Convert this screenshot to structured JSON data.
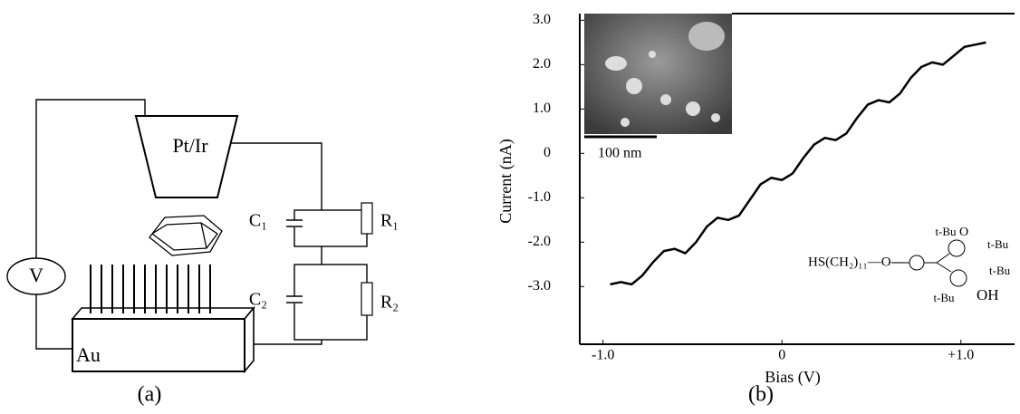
{
  "diagram": {
    "panel_label": "(a)",
    "tip": "Pt/Ir",
    "source": "V",
    "c1": "C₁",
    "r1": "R₁",
    "c2": "C₂",
    "r2": "R₂",
    "substrate": "Au"
  },
  "chart_data": {
    "type": "line",
    "panel_label": "(b)",
    "xlabel": "Bias (V)",
    "ylabel": "Current (nA)",
    "x": [
      -0.96,
      -0.9,
      -0.84,
      -0.78,
      -0.72,
      -0.66,
      -0.6,
      -0.54,
      -0.48,
      -0.42,
      -0.36,
      -0.3,
      -0.24,
      -0.18,
      -0.12,
      -0.06,
      0,
      0.06,
      0.12,
      0.18,
      0.24,
      0.3,
      0.36,
      0.42,
      0.48,
      0.54,
      0.6,
      0.66,
      0.72,
      0.78,
      0.84,
      0.9,
      0.96,
      1.02,
      1.08,
      1.14
    ],
    "values": [
      -2.95,
      -2.9,
      -2.95,
      -2.75,
      -2.45,
      -2.2,
      -2.15,
      -2.25,
      -2.0,
      -1.65,
      -1.45,
      -1.5,
      -1.4,
      -1.05,
      -0.7,
      -0.55,
      -0.6,
      -0.45,
      -0.1,
      0.2,
      0.35,
      0.3,
      0.45,
      0.8,
      1.1,
      1.2,
      1.15,
      1.35,
      1.7,
      1.95,
      2.05,
      2.0,
      2.2,
      2.4,
      2.45,
      2.5
    ],
    "color": "#000000",
    "xlim": [
      -1.13,
      1.3
    ],
    "ylim": [
      -4.3,
      3.15
    ],
    "xticks": [
      {
        "value": -1,
        "label": "-1.0"
      },
      0,
      {
        "value": 1,
        "label": "+1.0"
      }
    ],
    "yticks": [
      {
        "value": 3,
        "label": "3.0"
      },
      {
        "value": 2,
        "label": "2.0"
      },
      {
        "value": 1,
        "label": "1.0"
      },
      0,
      {
        "value": -1,
        "label": "-1.0"
      },
      {
        "value": -2,
        "label": "-2.0"
      },
      {
        "value": -3,
        "label": "-3.0"
      }
    ],
    "grid": false,
    "annotations": [
      "100 nm",
      "HS(CH₂)₁₁—O—",
      "t-Bu",
      "O",
      "t-Bu",
      "t-Bu",
      "t-Bu",
      "OH"
    ]
  }
}
